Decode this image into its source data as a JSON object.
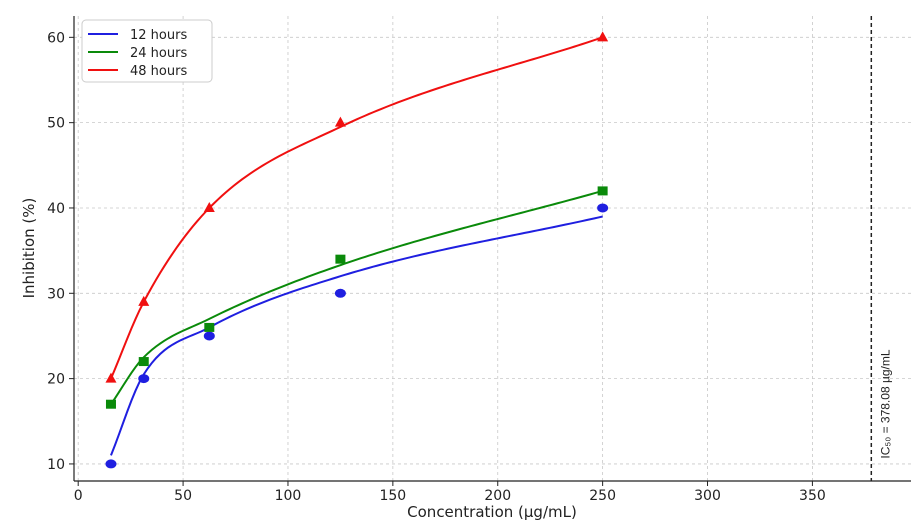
{
  "chart_data": {
    "type": "scatter",
    "title": "",
    "xlabel": "Concentration (µg/mL)",
    "ylabel": "Inhibition (%)",
    "xlim": [
      -2,
      397
    ],
    "ylim": [
      8,
      62.5
    ],
    "xticks": [
      0,
      50,
      100,
      150,
      200,
      250,
      300,
      350
    ],
    "yticks": [
      10,
      20,
      30,
      40,
      50,
      60
    ],
    "grid": true,
    "legend_position": "top-left",
    "series": [
      {
        "name": "12 hours",
        "color": "#1f1fe0",
        "marker": "circle",
        "x": [
          15.625,
          31.25,
          62.5,
          125,
          250
        ],
        "y": [
          10,
          20,
          25,
          30,
          40
        ],
        "fit_y": [
          11,
          20.5,
          26,
          32,
          39
        ]
      },
      {
        "name": "24 hours",
        "color": "#0a8a0a",
        "marker": "square",
        "x": [
          15.625,
          31.25,
          62.5,
          125,
          250
        ],
        "y": [
          17,
          22,
          26,
          34,
          42
        ],
        "fit_y": [
          17,
          22.5,
          27,
          33.3,
          42
        ]
      },
      {
        "name": "48 hours",
        "color": "#f01010",
        "marker": "triangle",
        "x": [
          15.625,
          31.25,
          62.5,
          125,
          250
        ],
        "y": [
          20,
          29,
          40,
          50,
          60
        ],
        "fit_y": [
          20,
          29,
          40,
          49.5,
          60
        ]
      }
    ],
    "annotations": [
      {
        "type": "vline",
        "x": 378.08,
        "label": "IC₅₀ = 378.08 µg/mL",
        "style": "dashed",
        "color": "#222222"
      }
    ]
  }
}
